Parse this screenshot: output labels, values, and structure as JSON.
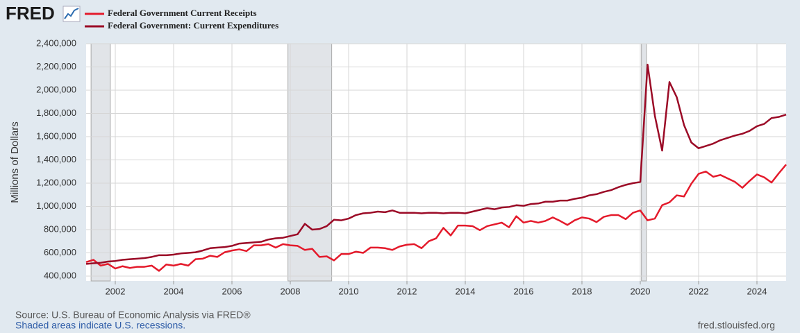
{
  "chart_data": {
    "type": "line",
    "logo": "FRED",
    "ylabel": "Millions of Dollars",
    "source": "Source: U.S. Bureau of Economic Analysis via FRED®",
    "note": "Shaded areas indicate U.S. recessions.",
    "url": "fred.stlouisfed.org",
    "xlim": [
      2001,
      2025
    ],
    "xticks": [
      2002,
      2004,
      2006,
      2008,
      2010,
      2012,
      2014,
      2016,
      2018,
      2020,
      2022,
      2024
    ],
    "ylim": [
      358000,
      2400000
    ],
    "yticks": [
      {
        "value": 400000,
        "label": "400,000"
      },
      {
        "value": 600000,
        "label": "600,000"
      },
      {
        "value": 800000,
        "label": "800,000"
      },
      {
        "value": 1000000,
        "label": "1,000,000"
      },
      {
        "value": 1200000,
        "label": "1,200,000"
      },
      {
        "value": 1400000,
        "label": "1,400,000"
      },
      {
        "value": 1600000,
        "label": "1,600,000"
      },
      {
        "value": 1800000,
        "label": "1,800,000"
      },
      {
        "value": 2000000,
        "label": "2,000,000"
      },
      {
        "value": 2200000,
        "label": "2,200,000"
      },
      {
        "value": 2400000,
        "label": "2,400,000"
      }
    ],
    "grid": true,
    "recessions": [
      [
        2001.17,
        2001.83
      ],
      [
        2007.92,
        2009.42
      ],
      [
        2020.04,
        2020.21
      ]
    ],
    "x": [
      2001,
      2001.25,
      2001.5,
      2001.75,
      2002,
      2002.25,
      2002.5,
      2002.75,
      2003,
      2003.25,
      2003.5,
      2003.75,
      2004,
      2004.25,
      2004.5,
      2004.75,
      2005,
      2005.25,
      2005.5,
      2005.75,
      2006,
      2006.25,
      2006.5,
      2006.75,
      2007,
      2007.25,
      2007.5,
      2007.75,
      2008,
      2008.25,
      2008.5,
      2008.75,
      2009,
      2009.25,
      2009.5,
      2009.75,
      2010,
      2010.25,
      2010.5,
      2010.75,
      2011,
      2011.25,
      2011.5,
      2011.75,
      2012,
      2012.25,
      2012.5,
      2012.75,
      2013,
      2013.25,
      2013.5,
      2013.75,
      2014,
      2014.25,
      2014.5,
      2014.75,
      2015,
      2015.25,
      2015.5,
      2015.75,
      2016,
      2016.25,
      2016.5,
      2016.75,
      2017,
      2017.25,
      2017.5,
      2017.75,
      2018,
      2018.25,
      2018.5,
      2018.75,
      2019,
      2019.25,
      2019.5,
      2019.75,
      2020,
      2020.25,
      2020.5,
      2020.75,
      2021,
      2021.25,
      2021.5,
      2021.75,
      2022,
      2022.25,
      2022.5,
      2022.75,
      2023,
      2023.25,
      2023.5,
      2023.75,
      2024,
      2024.25,
      2024.5,
      2024.75,
      2025
    ],
    "series": [
      {
        "name": "Federal Government Current Receipts",
        "color": "#e41a2b",
        "values": [
          520000,
          540000,
          490000,
          505000,
          465000,
          485000,
          470000,
          480000,
          480000,
          490000,
          445000,
          500000,
          490000,
          505000,
          490000,
          545000,
          550000,
          575000,
          565000,
          605000,
          620000,
          630000,
          615000,
          665000,
          665000,
          675000,
          645000,
          675000,
          665000,
          660000,
          625000,
          635000,
          565000,
          570000,
          535000,
          590000,
          590000,
          610000,
          600000,
          645000,
          645000,
          640000,
          625000,
          655000,
          670000,
          675000,
          640000,
          700000,
          725000,
          815000,
          750000,
          835000,
          835000,
          830000,
          795000,
          830000,
          845000,
          860000,
          820000,
          915000,
          860000,
          875000,
          860000,
          875000,
          905000,
          875000,
          840000,
          880000,
          905000,
          895000,
          865000,
          910000,
          925000,
          925000,
          890000,
          945000,
          965000,
          880000,
          895000,
          1010000,
          1035000,
          1095000,
          1085000,
          1195000,
          1280000,
          1300000,
          1255000,
          1270000,
          1240000,
          1210000,
          1160000,
          1220000,
          1275000,
          1250000,
          1205000,
          1285000,
          1360000
        ]
      },
      {
        "name": "Federal Government: Current Expenditures",
        "color": "#9b0a26",
        "values": [
          505000,
          510000,
          515000,
          525000,
          530000,
          540000,
          545000,
          550000,
          555000,
          565000,
          580000,
          580000,
          585000,
          595000,
          600000,
          605000,
          620000,
          640000,
          645000,
          650000,
          660000,
          680000,
          685000,
          690000,
          695000,
          715000,
          725000,
          730000,
          745000,
          760000,
          850000,
          800000,
          805000,
          830000,
          885000,
          880000,
          895000,
          925000,
          940000,
          945000,
          955000,
          950000,
          965000,
          945000,
          945000,
          945000,
          940000,
          945000,
          945000,
          940000,
          945000,
          945000,
          940000,
          955000,
          970000,
          985000,
          975000,
          990000,
          995000,
          1010000,
          1005000,
          1020000,
          1025000,
          1040000,
          1040000,
          1050000,
          1050000,
          1065000,
          1075000,
          1095000,
          1105000,
          1125000,
          1140000,
          1165000,
          1185000,
          1200000,
          1210000,
          2220000,
          1780000,
          1480000,
          2070000,
          1940000,
          1700000,
          1550000,
          1500000,
          1520000,
          1540000,
          1570000,
          1590000,
          1610000,
          1625000,
          1650000,
          1690000,
          1710000,
          1760000,
          1770000,
          1790000
        ]
      }
    ]
  }
}
